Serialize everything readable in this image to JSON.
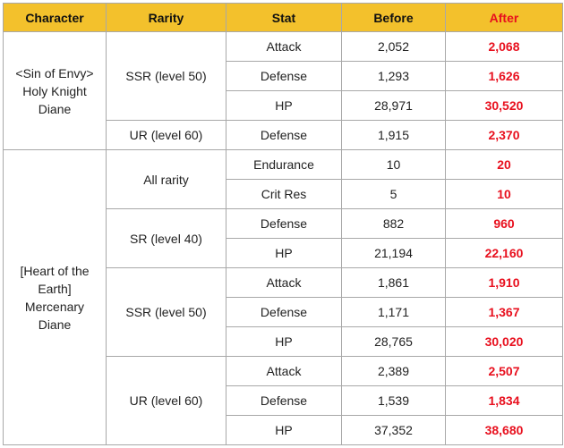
{
  "headers": {
    "character": "Character",
    "rarity": "Rarity",
    "stat": "Stat",
    "before": "Before",
    "after": "After"
  },
  "characters": [
    {
      "name_lines": [
        "<Sin of Envy>",
        "Holy Knight",
        "Diane"
      ],
      "groups": [
        {
          "rarity": "SSR (level 50)",
          "rows": [
            {
              "stat": "Attack",
              "before": "2,052",
              "after": "2,068"
            },
            {
              "stat": "Defense",
              "before": "1,293",
              "after": "1,626"
            },
            {
              "stat": "HP",
              "before": "28,971",
              "after": "30,520"
            }
          ]
        },
        {
          "rarity": "UR (level 60)",
          "rows": [
            {
              "stat": "Defense",
              "before": "1,915",
              "after": "2,370"
            }
          ]
        }
      ]
    },
    {
      "name_lines": [
        "[Heart of the",
        "Earth]",
        "Mercenary",
        "Diane"
      ],
      "groups": [
        {
          "rarity": "All rarity",
          "rows": [
            {
              "stat": "Endurance",
              "before": "10",
              "after": "20"
            },
            {
              "stat": "Crit Res",
              "before": "5",
              "after": "10"
            }
          ]
        },
        {
          "rarity": "SR (level 40)",
          "rows": [
            {
              "stat": "Defense",
              "before": "882",
              "after": "960"
            },
            {
              "stat": "HP",
              "before": "21,194",
              "after": "22,160"
            }
          ]
        },
        {
          "rarity": "SSR (level 50)",
          "rows": [
            {
              "stat": "Attack",
              "before": "1,861",
              "after": "1,910"
            },
            {
              "stat": "Defense",
              "before": "1,171",
              "after": "1,367"
            },
            {
              "stat": "HP",
              "before": "28,765",
              "after": "30,020"
            }
          ]
        },
        {
          "rarity": "UR (level 60)",
          "rows": [
            {
              "stat": "Attack",
              "before": "2,389",
              "after": "2,507"
            },
            {
              "stat": "Defense",
              "before": "1,539",
              "after": "1,834"
            },
            {
              "stat": "HP",
              "before": "37,352",
              "after": "38,680"
            }
          ]
        }
      ]
    }
  ],
  "colors": {
    "header_bg": "#f3c12c",
    "after_text": "#e8101e",
    "border": "#a8a8a8"
  }
}
